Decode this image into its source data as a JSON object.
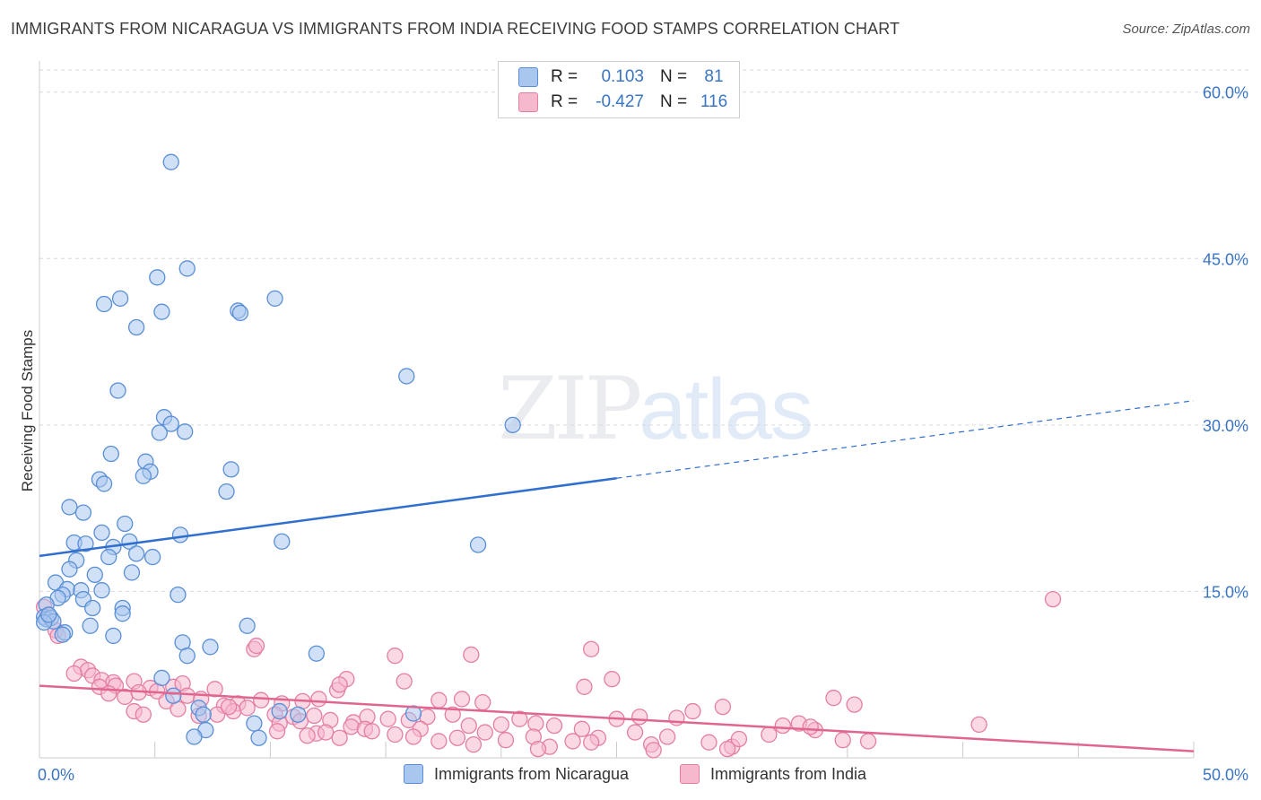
{
  "title": "IMMIGRANTS FROM NICARAGUA VS IMMIGRANTS FROM INDIA RECEIVING FOOD STAMPS CORRELATION CHART",
  "source": "Source: ZipAtlas.com",
  "watermark": {
    "zip": "ZIP",
    "atlas": "atlas"
  },
  "legend": {
    "r_label": "R =",
    "n_label": "N =",
    "rows": [
      {
        "r": "0.103",
        "n": "81"
      },
      {
        "r": "-0.427",
        "n": "116"
      }
    ]
  },
  "colors": {
    "nicaragua_fill": "#a9c7ee",
    "nicaragua_stroke": "#5a8fd6",
    "nicaragua_line": "#2f6fcf",
    "india_fill": "#f5b8cd",
    "india_stroke": "#e47fa3",
    "india_line": "#e0668f",
    "grid": "#d9d9d9",
    "tick_label": "#3a75c4"
  },
  "chart_data": {
    "type": "scatter",
    "title": "IMMIGRANTS FROM NICARAGUA VS IMMIGRANTS FROM INDIA RECEIVING FOOD STAMPS CORRELATION CHART",
    "xlabel": "",
    "ylabel": "Receiving Food Stamps",
    "xlim": [
      0,
      50
    ],
    "ylim": [
      0,
      62
    ],
    "x_tick_labels": [
      "0.0%",
      "50.0%"
    ],
    "y_ticks": [
      15,
      30,
      45,
      60
    ],
    "y_tick_labels": [
      "15.0%",
      "30.0%",
      "45.0%",
      "60.0%"
    ],
    "grid": true,
    "legend_position": "top-center",
    "series": [
      {
        "name": "Immigrants from Nicaragua",
        "r": 0.103,
        "n": 81,
        "trend": {
          "x0": 0,
          "y0": 18.2,
          "x1": 25,
          "y1": 25.2,
          "dashed_to_x": 50,
          "dashed_to_y": 32.2
        },
        "points": [
          [
            5.7,
            53.7
          ],
          [
            6.4,
            44.1
          ],
          [
            5.1,
            43.3
          ],
          [
            3.5,
            41.4
          ],
          [
            2.8,
            40.9
          ],
          [
            10.2,
            41.4
          ],
          [
            8.6,
            40.3
          ],
          [
            8.7,
            40.1
          ],
          [
            5.3,
            40.2
          ],
          [
            4.2,
            38.8
          ],
          [
            15.9,
            34.4
          ],
          [
            3.4,
            33.1
          ],
          [
            20.5,
            30.0
          ],
          [
            5.4,
            30.7
          ],
          [
            5.7,
            30.1
          ],
          [
            5.2,
            29.3
          ],
          [
            6.3,
            29.4
          ],
          [
            3.1,
            27.4
          ],
          [
            4.6,
            26.7
          ],
          [
            4.8,
            25.8
          ],
          [
            8.3,
            26.0
          ],
          [
            4.5,
            25.4
          ],
          [
            2.6,
            25.1
          ],
          [
            2.8,
            24.7
          ],
          [
            8.1,
            24.0
          ],
          [
            1.3,
            22.6
          ],
          [
            1.9,
            22.1
          ],
          [
            3.7,
            21.1
          ],
          [
            2.7,
            20.3
          ],
          [
            6.1,
            20.1
          ],
          [
            10.5,
            19.5
          ],
          [
            19.0,
            19.2
          ],
          [
            1.5,
            19.4
          ],
          [
            2.0,
            19.3
          ],
          [
            3.2,
            19.0
          ],
          [
            3.9,
            19.5
          ],
          [
            4.2,
            18.4
          ],
          [
            4.9,
            18.1
          ],
          [
            3.0,
            18.1
          ],
          [
            1.6,
            17.8
          ],
          [
            1.3,
            17.0
          ],
          [
            2.4,
            16.5
          ],
          [
            4.0,
            16.7
          ],
          [
            0.7,
            15.8
          ],
          [
            1.2,
            15.2
          ],
          [
            1.8,
            15.1
          ],
          [
            2.7,
            15.1
          ],
          [
            1.0,
            14.7
          ],
          [
            0.8,
            14.4
          ],
          [
            1.9,
            14.3
          ],
          [
            0.3,
            13.8
          ],
          [
            2.3,
            13.5
          ],
          [
            3.6,
            13.5
          ],
          [
            6.0,
            14.7
          ],
          [
            3.6,
            13.0
          ],
          [
            0.2,
            12.7
          ],
          [
            0.3,
            12.5
          ],
          [
            0.5,
            12.6
          ],
          [
            0.6,
            12.3
          ],
          [
            0.2,
            12.2
          ],
          [
            9.0,
            11.9
          ],
          [
            2.2,
            11.9
          ],
          [
            1.1,
            11.3
          ],
          [
            1.0,
            11.1
          ],
          [
            3.2,
            11.0
          ],
          [
            6.2,
            10.4
          ],
          [
            7.4,
            10.0
          ],
          [
            12.0,
            9.4
          ],
          [
            6.4,
            9.2
          ],
          [
            5.3,
            7.2
          ],
          [
            5.8,
            5.6
          ],
          [
            6.9,
            4.5
          ],
          [
            7.1,
            3.9
          ],
          [
            9.3,
            3.1
          ],
          [
            10.4,
            4.2
          ],
          [
            11.2,
            3.9
          ],
          [
            16.2,
            4.0
          ],
          [
            7.2,
            2.5
          ],
          [
            6.7,
            1.9
          ],
          [
            9.5,
            1.8
          ],
          [
            0.4,
            12.9
          ]
        ]
      },
      {
        "name": "Immigrants from India",
        "r": -0.427,
        "n": 116,
        "trend": {
          "x0": 0,
          "y0": 6.5,
          "x1": 50,
          "y1": 0.6
        },
        "points": [
          [
            43.9,
            14.3
          ],
          [
            0.2,
            13.6
          ],
          [
            0.4,
            12.8
          ],
          [
            0.7,
            11.5
          ],
          [
            0.8,
            11.0
          ],
          [
            9.3,
            9.8
          ],
          [
            9.4,
            10.1
          ],
          [
            15.4,
            9.2
          ],
          [
            18.7,
            9.3
          ],
          [
            23.9,
            9.8
          ],
          [
            1.8,
            8.2
          ],
          [
            2.1,
            7.9
          ],
          [
            1.5,
            7.6
          ],
          [
            2.3,
            7.4
          ],
          [
            2.7,
            7.0
          ],
          [
            3.2,
            6.8
          ],
          [
            4.1,
            6.9
          ],
          [
            2.6,
            6.4
          ],
          [
            3.3,
            6.5
          ],
          [
            4.8,
            6.3
          ],
          [
            5.8,
            6.4
          ],
          [
            3.0,
            5.8
          ],
          [
            3.7,
            5.5
          ],
          [
            4.3,
            5.9
          ],
          [
            5.1,
            6.0
          ],
          [
            6.2,
            6.7
          ],
          [
            7.6,
            6.2
          ],
          [
            5.5,
            5.1
          ],
          [
            6.4,
            5.6
          ],
          [
            7.0,
            5.3
          ],
          [
            8.0,
            4.7
          ],
          [
            8.6,
            4.9
          ],
          [
            9.6,
            5.2
          ],
          [
            10.5,
            4.9
          ],
          [
            11.4,
            5.1
          ],
          [
            12.1,
            5.3
          ],
          [
            12.9,
            6.1
          ],
          [
            13.3,
            7.1
          ],
          [
            13.0,
            6.6
          ],
          [
            15.8,
            6.9
          ],
          [
            17.3,
            5.2
          ],
          [
            18.3,
            5.3
          ],
          [
            19.2,
            5.0
          ],
          [
            23.6,
            6.4
          ],
          [
            24.8,
            7.1
          ],
          [
            34.4,
            5.4
          ],
          [
            35.3,
            4.8
          ],
          [
            4.1,
            4.2
          ],
          [
            4.5,
            3.9
          ],
          [
            6.0,
            4.4
          ],
          [
            6.9,
            3.8
          ],
          [
            7.7,
            3.9
          ],
          [
            8.4,
            4.2
          ],
          [
            9.0,
            4.5
          ],
          [
            10.2,
            3.9
          ],
          [
            11.0,
            3.7
          ],
          [
            11.9,
            3.8
          ],
          [
            12.6,
            3.4
          ],
          [
            13.6,
            3.2
          ],
          [
            14.2,
            3.7
          ],
          [
            15.1,
            3.5
          ],
          [
            16.0,
            3.4
          ],
          [
            16.8,
            3.7
          ],
          [
            17.9,
            3.9
          ],
          [
            18.6,
            2.9
          ],
          [
            20.0,
            3.0
          ],
          [
            20.8,
            3.5
          ],
          [
            21.5,
            3.1
          ],
          [
            22.3,
            2.9
          ],
          [
            23.5,
            2.6
          ],
          [
            25.0,
            3.5
          ],
          [
            26.0,
            3.7
          ],
          [
            27.6,
            3.6
          ],
          [
            28.3,
            4.2
          ],
          [
            29.6,
            4.6
          ],
          [
            32.2,
            2.9
          ],
          [
            32.9,
            3.1
          ],
          [
            33.6,
            2.5
          ],
          [
            40.7,
            3.0
          ],
          [
            10.4,
            3.1
          ],
          [
            11.3,
            3.3
          ],
          [
            12.0,
            2.2
          ],
          [
            13.5,
            2.8
          ],
          [
            14.1,
            2.6
          ],
          [
            15.4,
            2.1
          ],
          [
            16.5,
            2.6
          ],
          [
            17.3,
            1.5
          ],
          [
            18.1,
            1.8
          ],
          [
            19.3,
            2.3
          ],
          [
            20.2,
            1.6
          ],
          [
            21.4,
            1.9
          ],
          [
            22.1,
            1.0
          ],
          [
            23.1,
            1.5
          ],
          [
            24.2,
            1.8
          ],
          [
            25.8,
            2.3
          ],
          [
            26.5,
            1.2
          ],
          [
            27.2,
            1.9
          ],
          [
            29.0,
            1.4
          ],
          [
            30.0,
            1.0
          ],
          [
            30.3,
            1.7
          ],
          [
            31.6,
            2.1
          ],
          [
            33.4,
            2.8
          ],
          [
            34.8,
            1.6
          ],
          [
            35.9,
            1.5
          ],
          [
            10.3,
            2.4
          ],
          [
            11.6,
            2.0
          ],
          [
            12.4,
            2.3
          ],
          [
            13.0,
            1.8
          ],
          [
            14.4,
            2.4
          ],
          [
            16.2,
            1.9
          ],
          [
            18.8,
            1.2
          ],
          [
            21.6,
            0.8
          ],
          [
            23.9,
            1.4
          ],
          [
            26.6,
            0.7
          ],
          [
            29.8,
            0.8
          ],
          [
            8.2,
            4.6
          ]
        ]
      }
    ]
  },
  "bottom_legend": [
    "Immigrants from Nicaragua",
    "Immigrants from India"
  ]
}
